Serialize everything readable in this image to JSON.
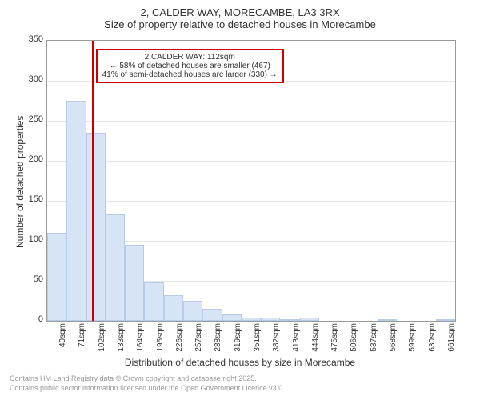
{
  "title": {
    "line1": "2, CALDER WAY, MORECAMBE, LA3 3RX",
    "line2": "Size of property relative to detached houses in Morecambe"
  },
  "chart": {
    "type": "histogram",
    "ylabel": "Number of detached properties",
    "xlabel": "Distribution of detached houses by size in Morecambe",
    "ylim": [
      0,
      350
    ],
    "ytick_step": 50,
    "xticks": [
      "40sqm",
      "71sqm",
      "102sqm",
      "133sqm",
      "164sqm",
      "195sqm",
      "226sqm",
      "257sqm",
      "288sqm",
      "319sqm",
      "351sqm",
      "382sqm",
      "413sqm",
      "444sqm",
      "475sqm",
      "506sqm",
      "537sqm",
      "568sqm",
      "599sqm",
      "630sqm",
      "661sqm"
    ],
    "bar_values": [
      110,
      275,
      235,
      133,
      95,
      48,
      32,
      25,
      15,
      8,
      4,
      4,
      2,
      4,
      0,
      0,
      0,
      2,
      0,
      0,
      2
    ],
    "bar_fill": "#d6e4f5",
    "bar_border": "#b8cce8",
    "grid_color": "#e6e6e6",
    "background": "#ffffff",
    "ref_line": {
      "x_index": 2.3,
      "color": "#cc0000",
      "width": 2
    },
    "annotation": {
      "line1": "2 CALDER WAY: 112sqm",
      "line2": "← 58% of detached houses are smaller (467)",
      "line3": "41% of semi-detached houses are larger (330) →",
      "border_color": "#cc0000",
      "left_bar_index": 2.5,
      "top_value": 340
    },
    "label_fontsize": 12,
    "tick_fontsize": 11
  },
  "footer": {
    "line1": "Contains HM Land Registry data © Crown copyright and database right 2025.",
    "line2": "Contains public sector information licensed under the Open Government Licence v3.0."
  }
}
